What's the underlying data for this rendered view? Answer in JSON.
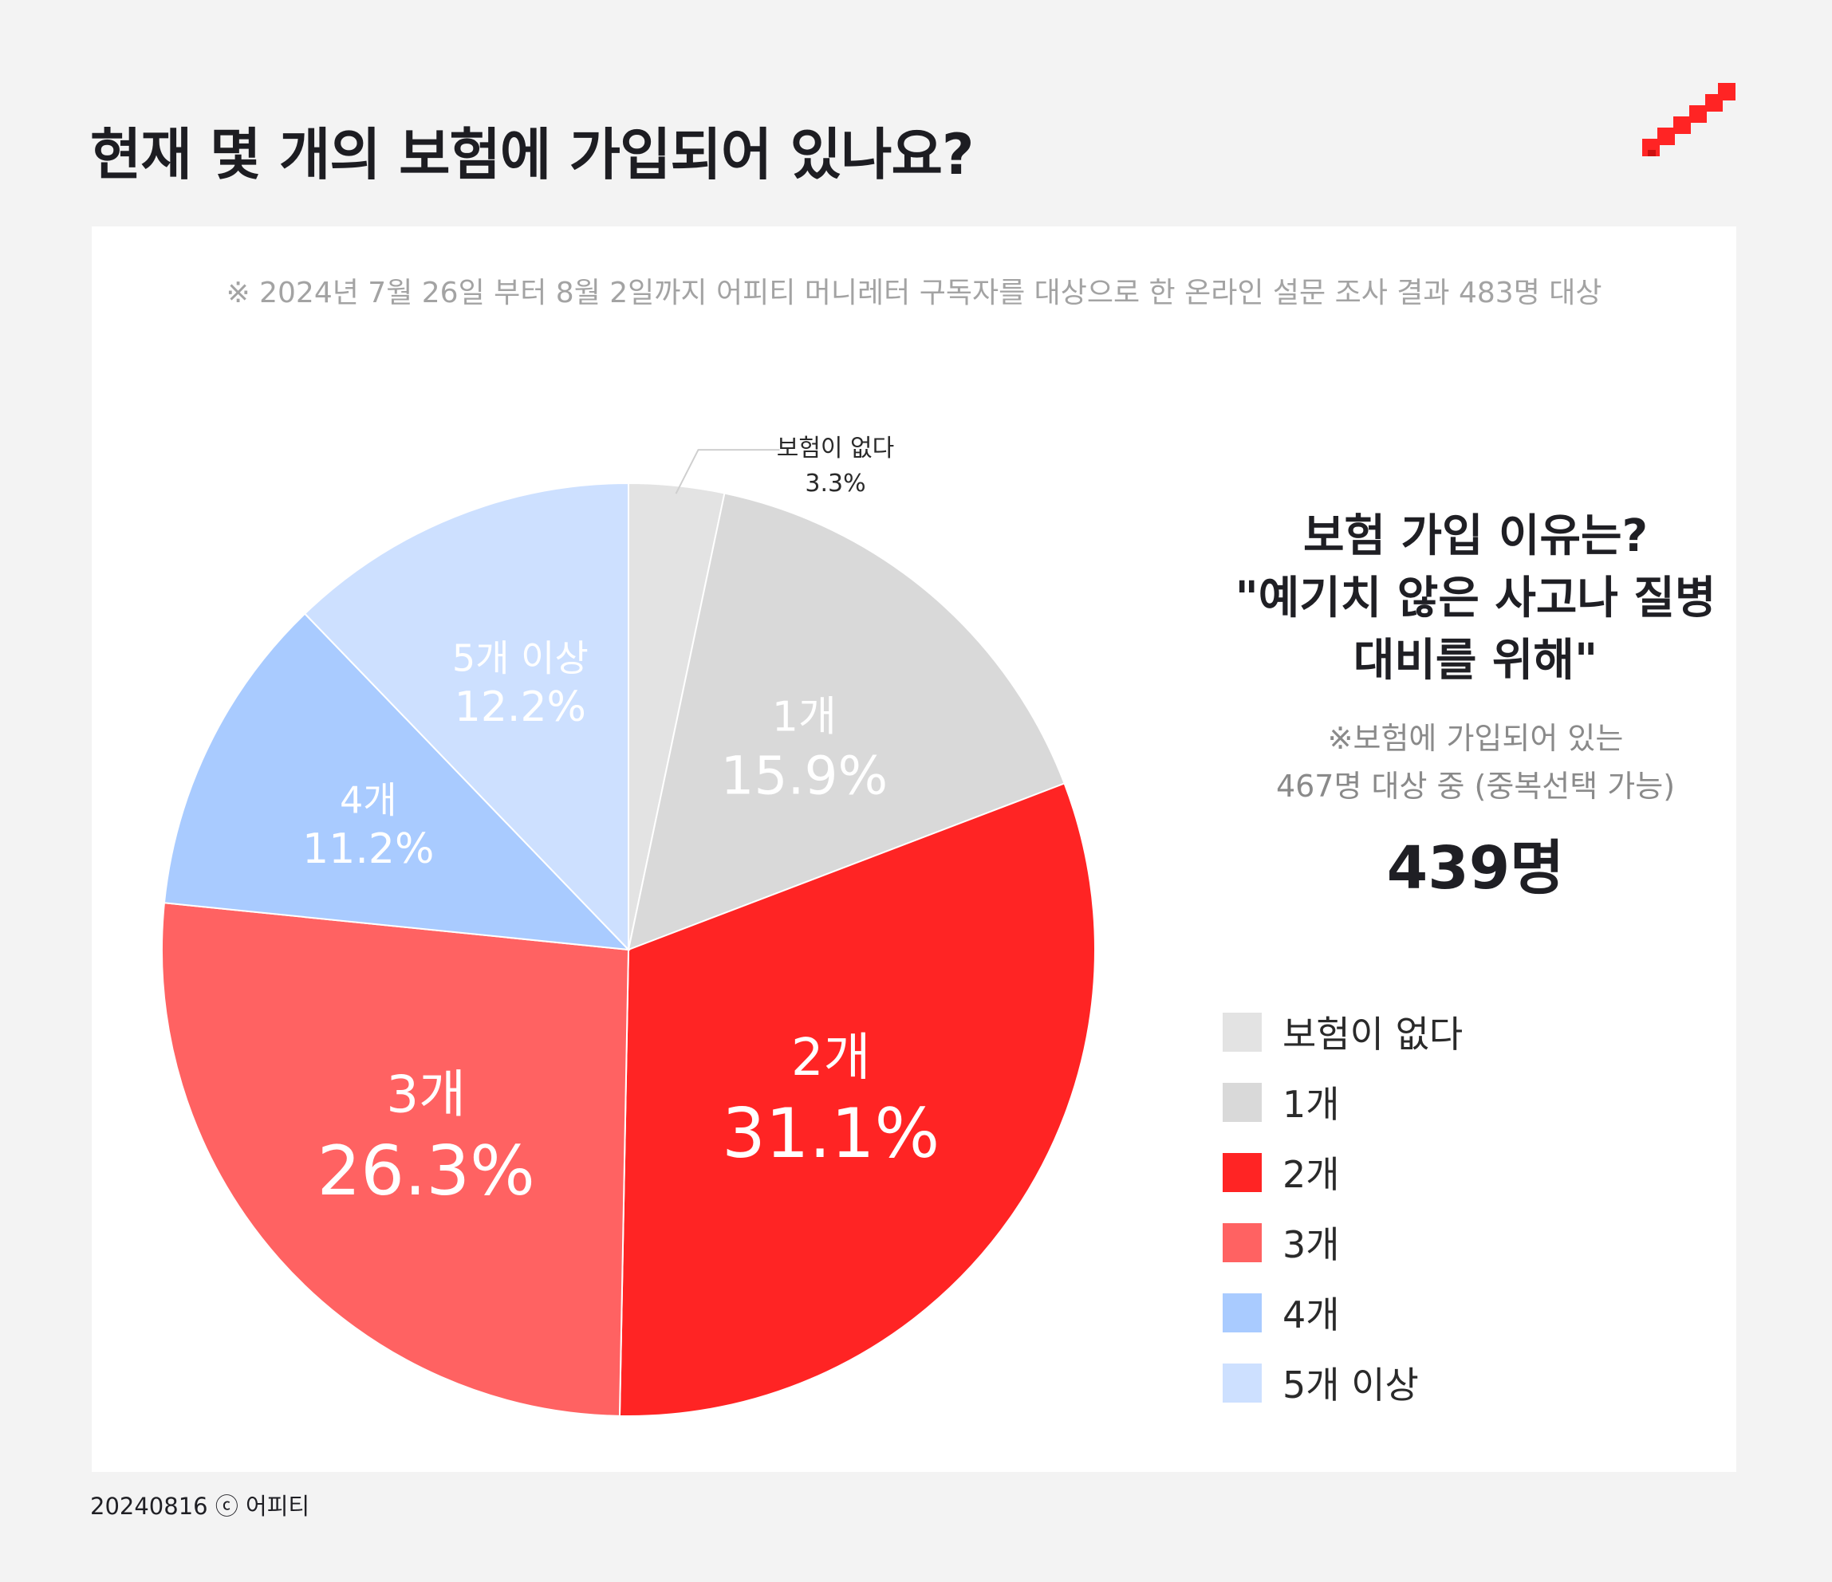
{
  "header": {
    "title": "현재 몇 개의 보험에 가입되어 있나요?"
  },
  "card": {
    "note": "※ 2024년 7월 26일 부터 8월 2일까지 어피티 머니레터 구독자를 대상으로 한 온라인 설문 조사 결과 483명 대상"
  },
  "side": {
    "title_lines": [
      "보험 가입 이유는?",
      "\"예기치 않은 사고나 질병",
      "대비를 위해\""
    ],
    "sub_lines": [
      "※보험에 가입되어 있는",
      "467명 대상 중 (중복선택 가능)"
    ],
    "count": "439명"
  },
  "footer": {
    "text": "20240816 ⓒ 어피티"
  },
  "colors": {
    "accent": "#ff2424",
    "logo": "#ff2424"
  },
  "chart_data": {
    "type": "pie",
    "title": "현재 몇 개의 보험에 가입되어 있나요?",
    "slices": [
      {
        "name": "보험이 없다",
        "value": 3.3,
        "label": "3.3%",
        "color": "#e3e3e3"
      },
      {
        "name": "1개",
        "value": 15.9,
        "label": "15.9%",
        "color": "#d9d9d9"
      },
      {
        "name": "2개",
        "value": 31.1,
        "label": "31.1%",
        "color": "#ff2424"
      },
      {
        "name": "3개",
        "value": 26.3,
        "label": "26.3%",
        "color": "#ff6262"
      },
      {
        "name": "4개",
        "value": 11.2,
        "label": "11.2%",
        "color": "#a9cbff"
      },
      {
        "name": "5개 이상",
        "value": 12.2,
        "label": "12.2%",
        "color": "#cde0ff"
      }
    ],
    "legend_position": "right"
  }
}
